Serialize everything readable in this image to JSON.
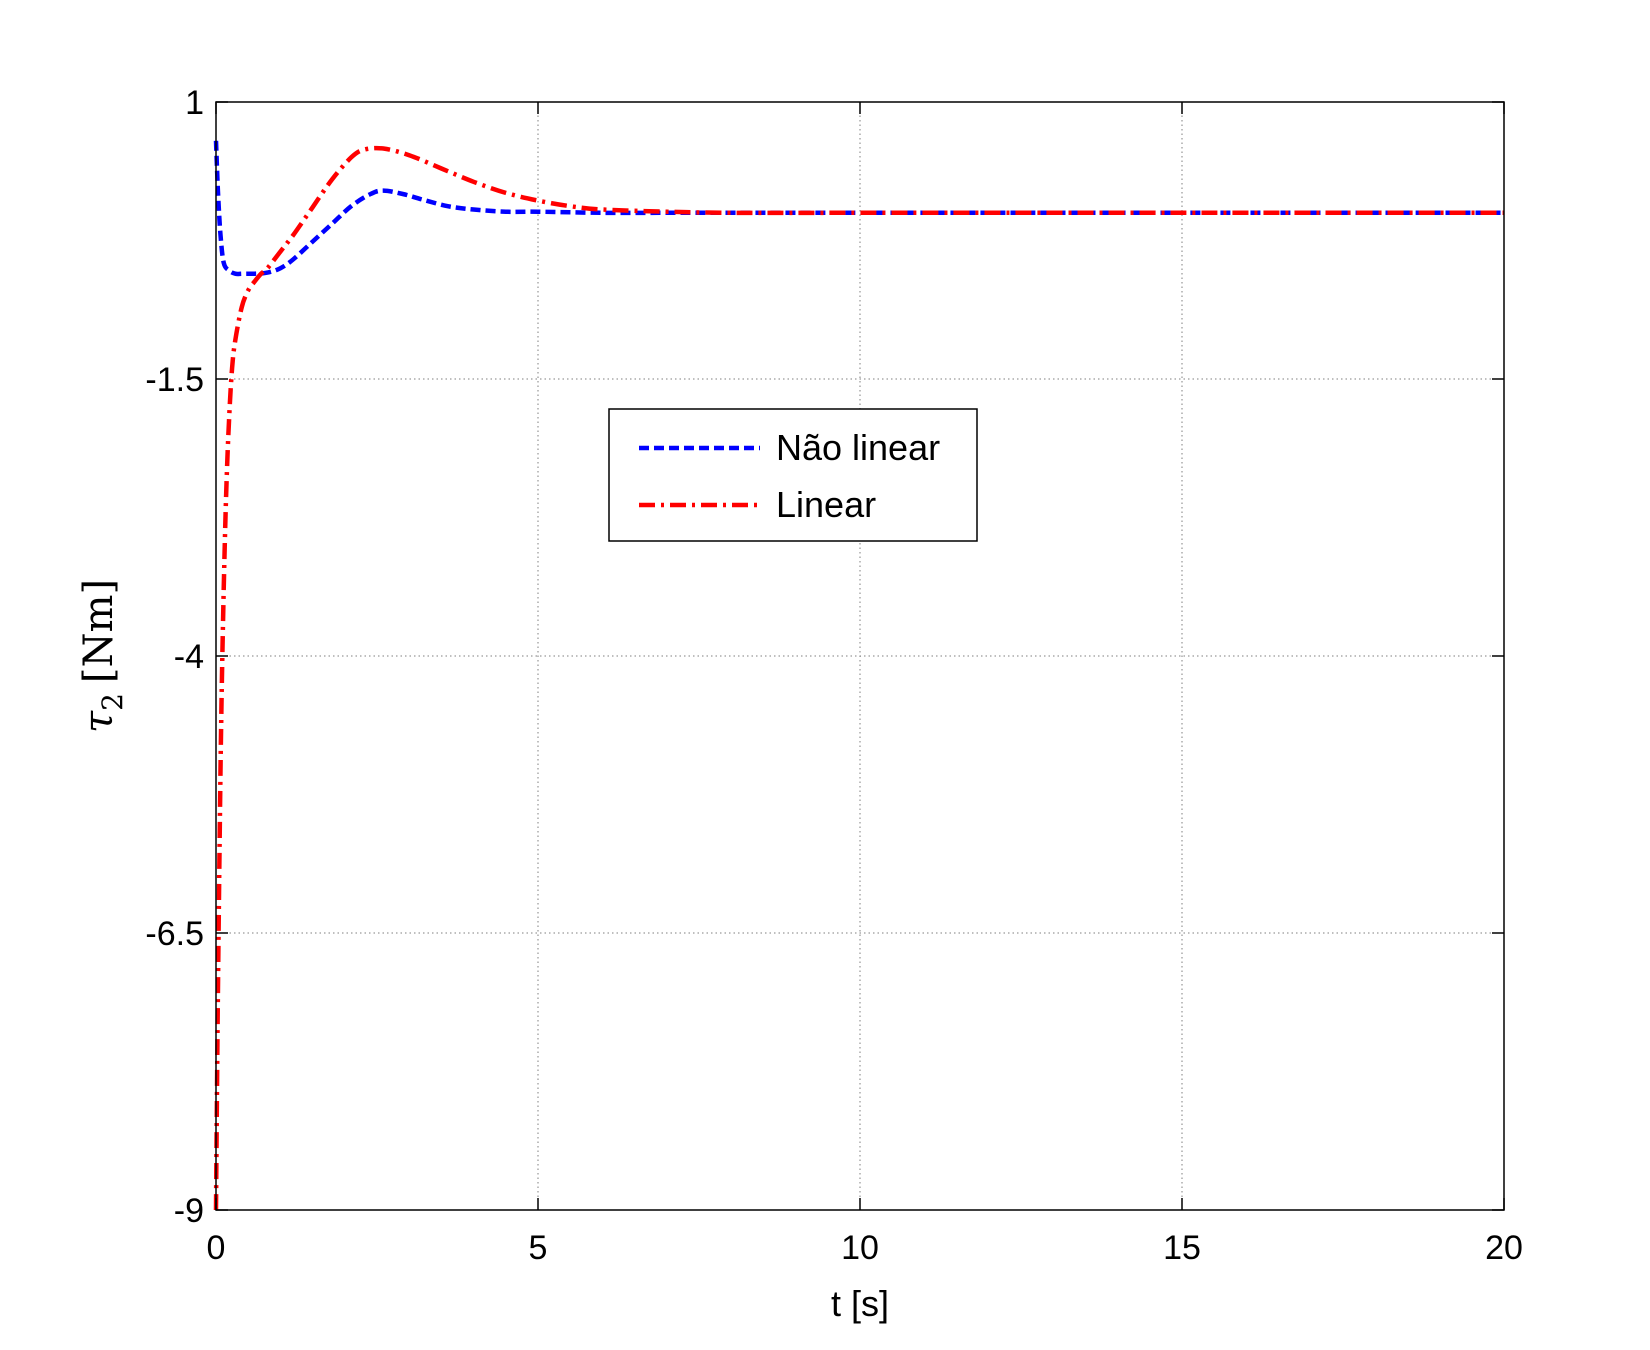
{
  "chart_data": {
    "type": "line",
    "title": "",
    "xlabel": "t [s]",
    "ylabel": "τ2 [Nm]",
    "ylabel_parts": {
      "symbol": "τ",
      "subscript": "2",
      "unit": "[Nm]"
    },
    "xlim": [
      0,
      20
    ],
    "ylim": [
      -9,
      1
    ],
    "xticks": [
      0,
      5,
      10,
      15,
      20
    ],
    "yticks": [
      -9,
      -6.5,
      -4,
      -1.5,
      1
    ],
    "xtick_labels": [
      "0",
      "5",
      "10",
      "15",
      "20"
    ],
    "ytick_labels": [
      "-9",
      "-6.5",
      "-4",
      "-1.5",
      "1"
    ],
    "grid": true,
    "legend_position": "upper-center",
    "series": [
      {
        "name": "Não linear",
        "color": "#0000ff",
        "style": "dashed",
        "x": [
          0,
          0.03,
          0.07,
          0.12,
          0.2,
          0.3,
          0.4,
          0.5,
          0.6,
          0.8,
          1.0,
          1.2,
          1.5,
          1.8,
          2.1,
          2.4,
          2.6,
          2.9,
          3.2,
          3.6,
          4.0,
          4.5,
          5.0,
          6.0,
          7.0,
          8.0,
          10.0,
          15.0,
          20.0
        ],
        "y": [
          0.65,
          0.2,
          -0.2,
          -0.45,
          -0.52,
          -0.55,
          -0.55,
          -0.55,
          -0.55,
          -0.54,
          -0.5,
          -0.42,
          -0.26,
          -0.1,
          0.06,
          0.17,
          0.2,
          0.17,
          0.12,
          0.06,
          0.03,
          0.01,
          0.01,
          0.0,
          0.0,
          0.0,
          0.0,
          0.0,
          0.0
        ]
      },
      {
        "name": "Linear",
        "color": "#ff0000",
        "style": "dash-dot",
        "x": [
          0,
          0.02,
          0.05,
          0.08,
          0.12,
          0.16,
          0.2,
          0.25,
          0.3,
          0.4,
          0.5,
          0.6,
          0.7,
          0.8,
          1.0,
          1.2,
          1.5,
          1.8,
          2.1,
          2.3,
          2.6,
          3.0,
          3.5,
          4.0,
          4.5,
          5.0,
          5.5,
          6.0,
          7.0,
          8.0,
          10.0,
          15.0,
          20.0
        ],
        "y": [
          -9.0,
          -7.6,
          -6.0,
          -4.6,
          -3.4,
          -2.5,
          -1.9,
          -1.4,
          -1.15,
          -0.85,
          -0.7,
          -0.62,
          -0.55,
          -0.5,
          -0.35,
          -0.2,
          0.05,
          0.3,
          0.5,
          0.57,
          0.58,
          0.52,
          0.4,
          0.28,
          0.18,
          0.11,
          0.06,
          0.03,
          0.01,
          0.0,
          0.0,
          0.0,
          0.0
        ]
      }
    ]
  }
}
